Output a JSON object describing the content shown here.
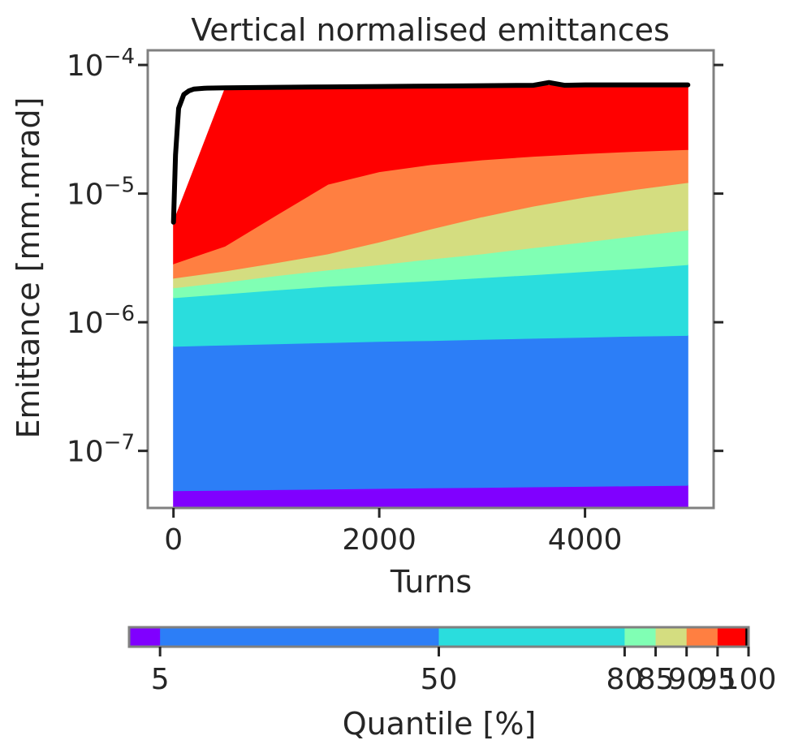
{
  "chart_data": {
    "type": "area",
    "title": "Vertical normalised emittances",
    "xlabel": "Turns",
    "ylabel": "Emittance [mm.mrad]",
    "xlim": [
      -250,
      5250
    ],
    "ylim": [
      3.6e-08,
      0.00013
    ],
    "yscale": "log",
    "xticks": [
      0,
      2000,
      4000
    ],
    "xtick_labels": [
      "0",
      "2000",
      "4000"
    ],
    "yticks": [
      1e-07,
      1e-06,
      1e-05,
      0.0001
    ],
    "ytick_labels": [
      {
        "base": "10",
        "exp": "−7"
      },
      {
        "base": "10",
        "exp": "−6"
      },
      {
        "base": "10",
        "exp": "−5"
      },
      {
        "base": "10",
        "exp": "−4"
      }
    ],
    "x": [
      0,
      500,
      1000,
      1500,
      2000,
      2500,
      3000,
      3500,
      4000,
      4500,
      5000
    ],
    "bands": [
      {
        "from": "0",
        "to": "5",
        "color": "#8000ff",
        "lower": [
          3.6e-08,
          3.6e-08,
          3.6e-08,
          3.6e-08,
          3.6e-08,
          3.6e-08,
          3.6e-08,
          3.6e-08,
          3.6e-08,
          3.6e-08,
          3.6e-08
        ],
        "upper": [
          4.9e-08,
          4.95e-08,
          5e-08,
          5.05e-08,
          5.1e-08,
          5.15e-08,
          5.2e-08,
          5.25e-08,
          5.3e-08,
          5.35e-08,
          5.4e-08
        ]
      },
      {
        "from": "5",
        "to": "50",
        "color": "#2c7ef7",
        "lower": [
          4.9e-08,
          4.95e-08,
          5e-08,
          5.05e-08,
          5.1e-08,
          5.15e-08,
          5.2e-08,
          5.25e-08,
          5.3e-08,
          5.35e-08,
          5.4e-08
        ],
        "upper": [
          6.5e-07,
          6.65e-07,
          6.8e-07,
          6.95e-07,
          7.1e-07,
          7.2e-07,
          7.35e-07,
          7.5e-07,
          7.65e-07,
          7.8e-07,
          7.9e-07
        ]
      },
      {
        "from": "50",
        "to": "80",
        "color": "#2adddd",
        "lower": [
          6.5e-07,
          6.65e-07,
          6.8e-07,
          6.95e-07,
          7.1e-07,
          7.2e-07,
          7.35e-07,
          7.5e-07,
          7.65e-07,
          7.8e-07,
          7.9e-07
        ],
        "upper": [
          1.55e-06,
          1.66e-06,
          1.78e-06,
          1.9e-06,
          2e-06,
          2.1e-06,
          2.22e-06,
          2.34e-06,
          2.48e-06,
          2.62e-06,
          2.8e-06
        ]
      },
      {
        "from": "80",
        "to": "85",
        "color": "#80ffb4",
        "lower": [
          1.55e-06,
          1.66e-06,
          1.78e-06,
          1.9e-06,
          2e-06,
          2.1e-06,
          2.22e-06,
          2.34e-06,
          2.48e-06,
          2.62e-06,
          2.8e-06
        ],
        "upper": [
          1.85e-06,
          2.05e-06,
          2.3e-06,
          2.55e-06,
          2.8e-06,
          3.1e-06,
          3.4e-06,
          3.8e-06,
          4.2e-06,
          4.7e-06,
          5.2e-06
        ]
      },
      {
        "from": "85",
        "to": "90",
        "color": "#d4dd80",
        "lower": [
          1.85e-06,
          2.05e-06,
          2.3e-06,
          2.55e-06,
          2.8e-06,
          3.1e-06,
          3.4e-06,
          3.8e-06,
          4.2e-06,
          4.7e-06,
          5.2e-06
        ],
        "upper": [
          2.2e-06,
          2.5e-06,
          2.9e-06,
          3.4e-06,
          4.2e-06,
          5.3e-06,
          6.6e-06,
          8e-06,
          9.4e-06,
          1.08e-05,
          1.22e-05
        ]
      },
      {
        "from": "90",
        "to": "95",
        "color": "#ff7f41",
        "lower": [
          2.2e-06,
          2.5e-06,
          2.9e-06,
          3.4e-06,
          4.2e-06,
          5.3e-06,
          6.6e-06,
          8e-06,
          9.4e-06,
          1.08e-05,
          1.22e-05
        ],
        "upper": [
          2.85e-06,
          3.9e-06,
          6.8e-06,
          1.18e-05,
          1.48e-05,
          1.68e-05,
          1.83e-05,
          1.95e-05,
          2.05e-05,
          2.13e-05,
          2.2e-05
        ]
      },
      {
        "from": "95",
        "to": "100",
        "color": "#ff0000",
        "lower": [
          2.85e-06,
          3.9e-06,
          6.8e-06,
          1.18e-05,
          1.48e-05,
          1.68e-05,
          1.83e-05,
          1.95e-05,
          2.05e-05,
          2.13e-05,
          2.2e-05
        ],
        "upper": [
          6e-06,
          6.5e-05,
          6.6e-05,
          6.7e-05,
          6.75e-05,
          6.8e-05,
          6.85e-05,
          6.9e-05,
          6.95e-05,
          6.95e-05,
          6.95e-05
        ]
      }
    ],
    "max_line": {
      "color": "#000000",
      "x": [
        0,
        20,
        50,
        100,
        150,
        200,
        300,
        500,
        1000,
        1500,
        2000,
        2500,
        3000,
        3500,
        3650,
        3800,
        4000,
        4500,
        5000
      ],
      "y": [
        6e-06,
        2e-05,
        4.6e-05,
        5.9e-05,
        6.3e-05,
        6.5e-05,
        6.6e-05,
        6.65e-05,
        6.7e-05,
        6.75e-05,
        6.8e-05,
        6.85e-05,
        6.9e-05,
        6.95e-05,
        7.3e-05,
        6.95e-05,
        7e-05,
        7e-05,
        7e-05
      ]
    },
    "colorbar": {
      "label": "Quantile [%]",
      "tick_labels": [
        "5",
        "50",
        "80",
        "85",
        "90",
        "95",
        "100"
      ],
      "segments": [
        {
          "from": 0,
          "to": 5,
          "color": "#8000ff"
        },
        {
          "from": 5,
          "to": 50,
          "color": "#2c7ef7"
        },
        {
          "from": 50,
          "to": 80,
          "color": "#2adddd"
        },
        {
          "from": 80,
          "to": 85,
          "color": "#80ffb4"
        },
        {
          "from": 85,
          "to": 90,
          "color": "#d4dd80"
        },
        {
          "from": 90,
          "to": 95,
          "color": "#ff7f41"
        },
        {
          "from": 95,
          "to": 99.5,
          "color": "#ff0000"
        },
        {
          "from": 99.5,
          "to": 100,
          "color": "#000000"
        }
      ]
    },
    "frame_color": "#808080"
  }
}
